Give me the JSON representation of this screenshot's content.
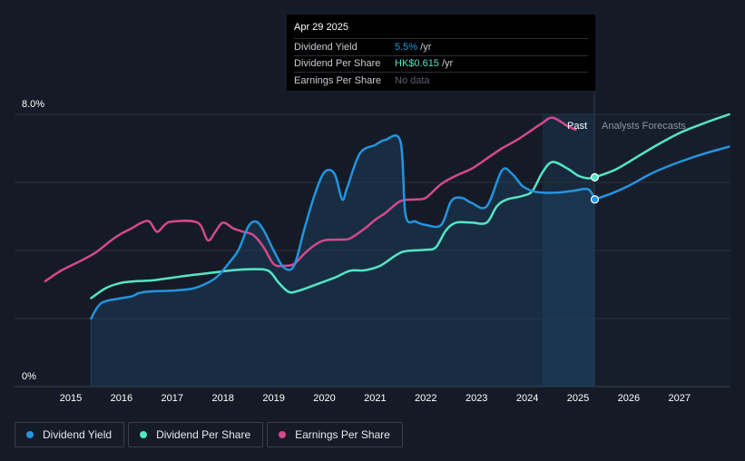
{
  "tooltip": {
    "date": "Apr 29 2025",
    "rows": [
      {
        "label": "Dividend Yield",
        "value": "5.5%",
        "unit": "/yr"
      },
      {
        "label": "Dividend Per Share",
        "value": "HK$0.615",
        "unit": "/yr"
      },
      {
        "label": "Earnings Per Share",
        "value": "No data",
        "unit": ""
      }
    ]
  },
  "legend": [
    {
      "label": "Dividend Yield",
      "color": "#2394df"
    },
    {
      "label": "Dividend Per Share",
      "color": "#53e6c5"
    },
    {
      "label": "Earnings Per Share",
      "color": "#d5498c"
    }
  ],
  "colors": {
    "background": "#151b26",
    "yield": "#2394df",
    "dps": "#53e6c5",
    "eps": "#d5498c"
  },
  "chart_data": {
    "type": "line",
    "title": "",
    "y_tick_labels": [
      "0%",
      "8.0%"
    ],
    "ylim": [
      0,
      8
    ],
    "xlim": [
      2014.38,
      2027.98
    ],
    "x_ticks": [
      2015,
      2016,
      2017,
      2018,
      2019,
      2020,
      2021,
      2022,
      2023,
      2024,
      2025,
      2026,
      2027
    ],
    "past_label": "Past",
    "forecast_label": "Analysts Forecasts",
    "past_start": 2024.3,
    "forecast_start": 2025.33,
    "series": [
      {
        "name": "Dividend Yield",
        "unit": "%",
        "color": "#2394df",
        "points": [
          [
            2015.4,
            2.0
          ],
          [
            2015.6,
            2.45
          ],
          [
            2016.0,
            2.6
          ],
          [
            2016.2,
            2.65
          ],
          [
            2016.35,
            2.75
          ],
          [
            2016.6,
            2.8
          ],
          [
            2017.0,
            2.82
          ],
          [
            2017.4,
            2.88
          ],
          [
            2017.7,
            3.05
          ],
          [
            2017.9,
            3.25
          ],
          [
            2018.1,
            3.6
          ],
          [
            2018.3,
            4.0
          ],
          [
            2018.5,
            4.7
          ],
          [
            2018.65,
            4.85
          ],
          [
            2018.8,
            4.6
          ],
          [
            2019.0,
            4.0
          ],
          [
            2019.2,
            3.5
          ],
          [
            2019.4,
            3.55
          ],
          [
            2019.6,
            4.6
          ],
          [
            2019.8,
            5.6
          ],
          [
            2020.0,
            6.3
          ],
          [
            2020.2,
            6.25
          ],
          [
            2020.35,
            5.5
          ],
          [
            2020.45,
            5.85
          ],
          [
            2020.7,
            6.85
          ],
          [
            2021.0,
            7.1
          ],
          [
            2021.2,
            7.25
          ],
          [
            2021.5,
            7.2
          ],
          [
            2021.6,
            5.05
          ],
          [
            2021.8,
            4.85
          ],
          [
            2022.0,
            4.75
          ],
          [
            2022.3,
            4.75
          ],
          [
            2022.5,
            5.45
          ],
          [
            2022.7,
            5.55
          ],
          [
            2022.9,
            5.4
          ],
          [
            2023.2,
            5.3
          ],
          [
            2023.5,
            6.35
          ],
          [
            2023.7,
            6.25
          ],
          [
            2023.9,
            5.9
          ],
          [
            2024.1,
            5.75
          ],
          [
            2024.3,
            5.7
          ],
          [
            2024.6,
            5.7
          ],
          [
            2024.9,
            5.75
          ],
          [
            2025.2,
            5.8
          ],
          [
            2025.33,
            5.5
          ]
        ]
      },
      {
        "name": "Dividend Yield Forecast",
        "unit": "%",
        "color": "#2394df",
        "points": [
          [
            2025.33,
            5.5
          ],
          [
            2025.7,
            5.7
          ],
          [
            2026.0,
            5.9
          ],
          [
            2026.5,
            6.3
          ],
          [
            2027.0,
            6.6
          ],
          [
            2027.5,
            6.85
          ],
          [
            2027.98,
            7.05
          ]
        ]
      },
      {
        "name": "Dividend Per Share",
        "unit": "HK$",
        "color": "#53e6c5",
        "points": [
          [
            2015.4,
            2.6
          ],
          [
            2015.7,
            2.9
          ],
          [
            2016.0,
            3.05
          ],
          [
            2016.3,
            3.1
          ],
          [
            2016.6,
            3.12
          ],
          [
            2017.0,
            3.2
          ],
          [
            2017.4,
            3.28
          ],
          [
            2017.8,
            3.35
          ],
          [
            2018.2,
            3.42
          ],
          [
            2018.6,
            3.45
          ],
          [
            2018.9,
            3.4
          ],
          [
            2019.1,
            3.05
          ],
          [
            2019.3,
            2.78
          ],
          [
            2019.5,
            2.82
          ],
          [
            2019.8,
            2.98
          ],
          [
            2020.2,
            3.2
          ],
          [
            2020.5,
            3.4
          ],
          [
            2020.8,
            3.42
          ],
          [
            2021.1,
            3.55
          ],
          [
            2021.4,
            3.85
          ],
          [
            2021.6,
            3.98
          ],
          [
            2022.0,
            4.02
          ],
          [
            2022.2,
            4.1
          ],
          [
            2022.4,
            4.6
          ],
          [
            2022.6,
            4.82
          ],
          [
            2022.9,
            4.82
          ],
          [
            2023.2,
            4.82
          ],
          [
            2023.4,
            5.3
          ],
          [
            2023.6,
            5.5
          ],
          [
            2023.9,
            5.6
          ],
          [
            2024.1,
            5.75
          ],
          [
            2024.3,
            6.3
          ],
          [
            2024.5,
            6.6
          ],
          [
            2024.8,
            6.4
          ],
          [
            2025.0,
            6.2
          ],
          [
            2025.2,
            6.12
          ],
          [
            2025.33,
            6.15
          ]
        ]
      },
      {
        "name": "Dividend Per Share Forecast",
        "unit": "HK$",
        "color": "#53e6c5",
        "points": [
          [
            2025.33,
            6.15
          ],
          [
            2025.7,
            6.35
          ],
          [
            2026.0,
            6.6
          ],
          [
            2026.5,
            7.05
          ],
          [
            2027.0,
            7.45
          ],
          [
            2027.5,
            7.75
          ],
          [
            2027.98,
            8.0
          ]
        ]
      },
      {
        "name": "Earnings Per Share",
        "unit": "HK$",
        "color": "#d5498c",
        "points": [
          [
            2014.5,
            3.1
          ],
          [
            2014.8,
            3.4
          ],
          [
            2015.2,
            3.7
          ],
          [
            2015.5,
            3.95
          ],
          [
            2015.8,
            4.3
          ],
          [
            2016.0,
            4.5
          ],
          [
            2016.2,
            4.65
          ],
          [
            2016.4,
            4.82
          ],
          [
            2016.55,
            4.85
          ],
          [
            2016.7,
            4.55
          ],
          [
            2016.85,
            4.75
          ],
          [
            2017.0,
            4.85
          ],
          [
            2017.5,
            4.82
          ],
          [
            2017.7,
            4.3
          ],
          [
            2017.85,
            4.55
          ],
          [
            2018.0,
            4.82
          ],
          [
            2018.2,
            4.65
          ],
          [
            2018.4,
            4.55
          ],
          [
            2018.6,
            4.45
          ],
          [
            2018.8,
            4.1
          ],
          [
            2019.0,
            3.6
          ],
          [
            2019.2,
            3.55
          ],
          [
            2019.4,
            3.6
          ],
          [
            2019.6,
            3.9
          ],
          [
            2019.8,
            4.15
          ],
          [
            2020.0,
            4.3
          ],
          [
            2020.3,
            4.32
          ],
          [
            2020.5,
            4.35
          ],
          [
            2020.8,
            4.65
          ],
          [
            2021.0,
            4.9
          ],
          [
            2021.2,
            5.1
          ],
          [
            2021.5,
            5.45
          ],
          [
            2021.8,
            5.5
          ],
          [
            2022.0,
            5.55
          ],
          [
            2022.3,
            5.95
          ],
          [
            2022.6,
            6.2
          ],
          [
            2022.9,
            6.4
          ],
          [
            2023.2,
            6.7
          ],
          [
            2023.5,
            7.0
          ],
          [
            2023.8,
            7.25
          ],
          [
            2024.1,
            7.55
          ],
          [
            2024.3,
            7.75
          ],
          [
            2024.5,
            7.9
          ],
          [
            2024.8,
            7.65
          ],
          [
            2024.95,
            7.55
          ]
        ]
      }
    ]
  }
}
